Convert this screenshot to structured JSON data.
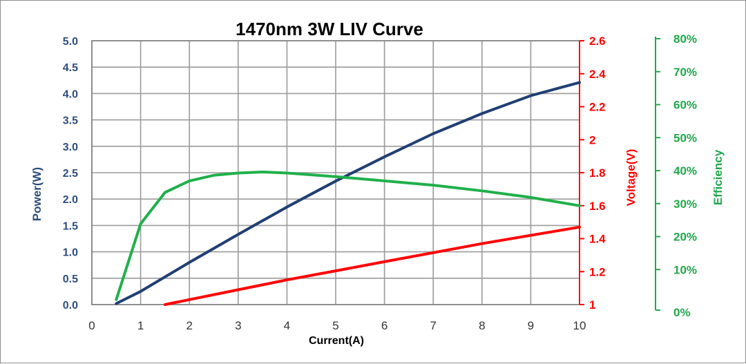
{
  "chart_data": {
    "type": "line",
    "title": "1470nm 3W LIV Curve",
    "xlabel": "Current(A)",
    "ylabel_left": "Power(W)",
    "ylabel_right": "Voltage(V)",
    "ylabel_far_right": "Efficiency",
    "xlim": [
      0,
      10
    ],
    "ylim_left": [
      0,
      5
    ],
    "ylim_right": [
      1,
      2.6
    ],
    "ylim_far_right": [
      0,
      80
    ],
    "x_ticks": [
      "0",
      "1",
      "2",
      "3",
      "4",
      "5",
      "6",
      "7",
      "8",
      "9",
      "10"
    ],
    "y_left_ticks": [
      "0.0",
      "0.5",
      "1.0",
      "1.5",
      "2.0",
      "2.5",
      "3.0",
      "3.5",
      "4.0",
      "4.5",
      "5.0"
    ],
    "y_right_ticks": [
      "1",
      "1.2",
      "1.4",
      "1.6",
      "1.8",
      "2",
      "2.2",
      "2.4",
      "2.6"
    ],
    "y_far_right_ticks": [
      "0%",
      "10%",
      "20%",
      "30%",
      "40%",
      "50%",
      "60%",
      "70%",
      "80%"
    ],
    "grid": true,
    "series": [
      {
        "axis": "left",
        "color": "#203f73",
        "x": [
          0.5,
          1,
          2,
          3,
          4,
          5,
          6,
          7,
          8,
          9,
          10
        ],
        "values": [
          0.02,
          0.25,
          0.8,
          1.33,
          1.85,
          2.34,
          2.8,
          3.24,
          3.62,
          3.96,
          4.21
        ]
      },
      {
        "axis": "right",
        "color": "#ff0000",
        "x": [
          1.5,
          2,
          3,
          4,
          5,
          6,
          7,
          8,
          9,
          10
        ],
        "values": [
          1.0,
          1.03,
          1.09,
          1.15,
          1.205,
          1.26,
          1.315,
          1.37,
          1.42,
          1.47
        ]
      },
      {
        "axis": "far_right",
        "color": "#1fb04a",
        "x": [
          0.5,
          1,
          1.5,
          2,
          2.5,
          3,
          3.5,
          4,
          5,
          6,
          7,
          8,
          9,
          10
        ],
        "values": [
          1.5,
          24.5,
          34,
          37.5,
          39.2,
          39.9,
          40.2,
          39.9,
          38.8,
          37.5,
          36.2,
          34.5,
          32.5,
          30
        ]
      }
    ]
  }
}
